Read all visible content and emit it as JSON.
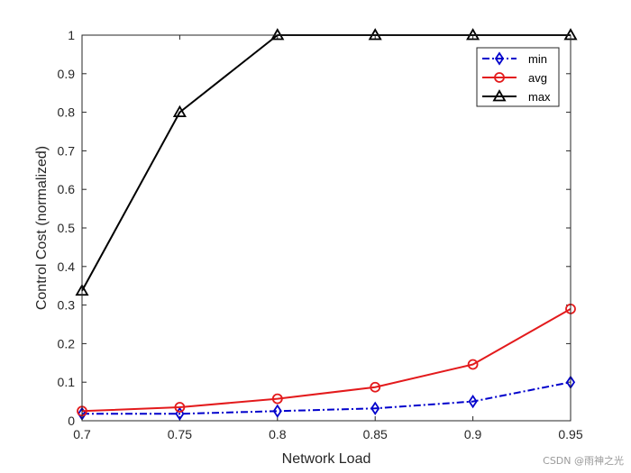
{
  "chart_data": {
    "type": "line",
    "title": "",
    "xlabel": "Network Load",
    "ylabel": "Control Cost (normalized)",
    "xlim": [
      0.7,
      0.95
    ],
    "ylim": [
      0,
      1
    ],
    "xticks": [
      "0.7",
      "0.75",
      "0.8",
      "0.85",
      "0.9",
      "0.95"
    ],
    "yticks": [
      "0",
      "0.1",
      "0.2",
      "0.3",
      "0.4",
      "0.5",
      "0.6",
      "0.7",
      "0.8",
      "0.9",
      "1"
    ],
    "x": [
      0.7,
      0.75,
      0.8,
      0.85,
      0.9,
      0.95
    ],
    "grid": false,
    "legend_position": "top-right",
    "series": [
      {
        "name": "min",
        "values": [
          0.018,
          0.018,
          0.025,
          0.032,
          0.05,
          0.1
        ],
        "color": "#0000CC",
        "marker": "diamond",
        "line": "dash-dot"
      },
      {
        "name": "avg",
        "values": [
          0.025,
          0.035,
          0.057,
          0.087,
          0.146,
          0.29
        ],
        "color": "#E31A1C",
        "marker": "circle",
        "line": "solid"
      },
      {
        "name": "max",
        "values": [
          0.337,
          0.8,
          1.0,
          1.0,
          1.0,
          1.0
        ],
        "color": "#000000",
        "marker": "triangle",
        "line": "solid"
      }
    ]
  },
  "watermark": "CSDN @雨神之光"
}
